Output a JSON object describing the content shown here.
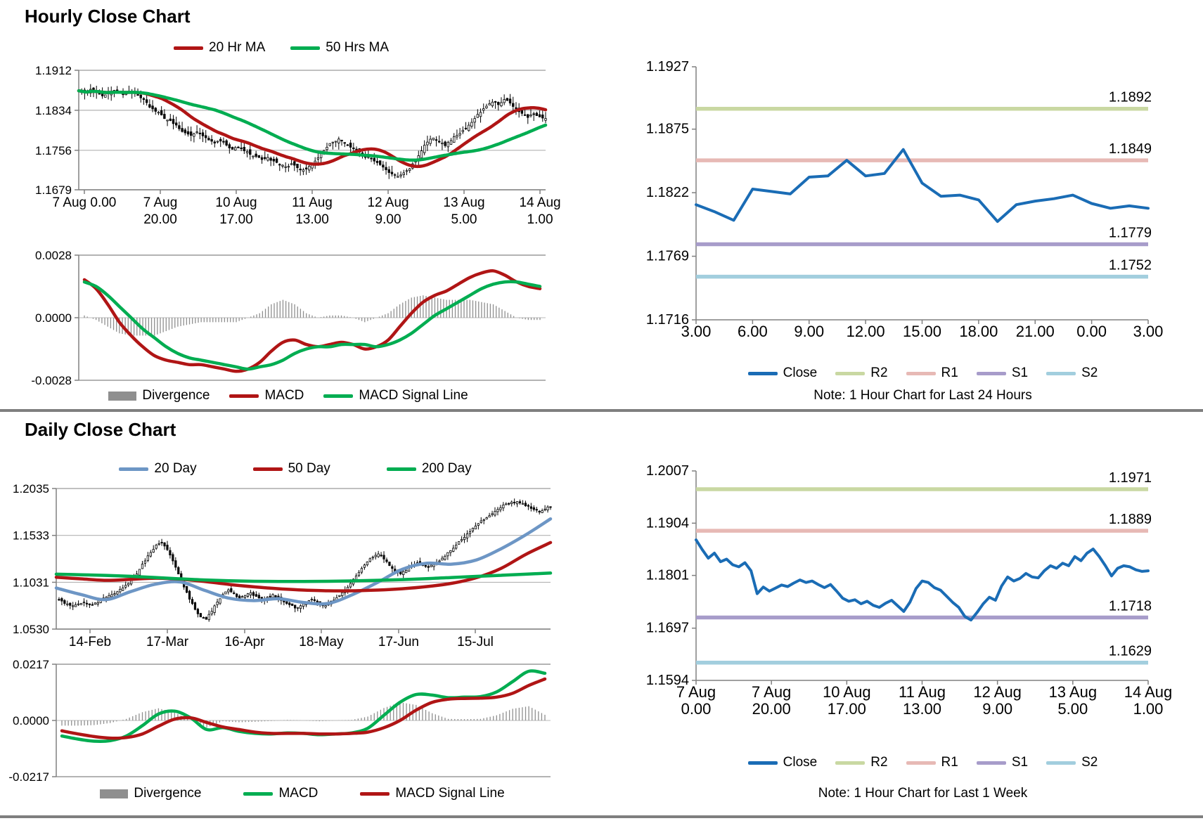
{
  "titles": {
    "hourly": "Hourly Close Chart",
    "daily": "Daily Close Chart"
  },
  "colors": {
    "dark_red": "#b01515",
    "green": "#00ad51",
    "ma20_blue": "#6d96c5",
    "close_blue": "#1a6cb5",
    "r2": "#c9d8a2",
    "r1": "#e7b9b5",
    "s1": "#a79cca",
    "s2": "#a2cede",
    "divergence_gray": "#8f8f8f",
    "grid": "#b3b3b3",
    "axis": "#808080"
  },
  "chart_data": [
    {
      "id": "hourly_candlestick",
      "type": "candlestick",
      "y_ticks": {
        "labels": [
          "1.1912",
          "1.1834",
          "1.1756",
          "1.1679"
        ],
        "values": [
          1.1912,
          1.1834,
          1.1756,
          1.1679
        ]
      },
      "x_ticks": [
        [
          "7 Aug 0.00"
        ],
        [
          "7 Aug",
          "20.00"
        ],
        [
          "10 Aug",
          "17.00"
        ],
        [
          "11 Aug",
          "13.00"
        ],
        [
          "12 Aug",
          "9.00"
        ],
        [
          "13 Aug",
          "5.00"
        ],
        [
          "14 Aug",
          "1.00"
        ]
      ],
      "close": [
        1.1872,
        1.1868,
        1.1875,
        1.187,
        1.1862,
        1.1868,
        1.1873,
        1.187,
        1.1866,
        1.1871,
        1.1864,
        1.1855,
        1.184,
        1.1832,
        1.1825,
        1.1815,
        1.1808,
        1.1798,
        1.179,
        1.1785,
        1.1792,
        1.1784,
        1.1776,
        1.177,
        1.1774,
        1.1766,
        1.1758,
        1.1762,
        1.1755,
        1.1748,
        1.1744,
        1.1738,
        1.1742,
        1.1735,
        1.1728,
        1.1724,
        1.173,
        1.1722,
        1.1718,
        1.1725,
        1.1735,
        1.175,
        1.1762,
        1.1772,
        1.1778,
        1.177,
        1.1762,
        1.1755,
        1.1748,
        1.1742,
        1.1735,
        1.1728,
        1.1718,
        1.171,
        1.1705,
        1.1712,
        1.172,
        1.1735,
        1.1755,
        1.1772,
        1.178,
        1.1772,
        1.1765,
        1.1775,
        1.1785,
        1.1795,
        1.1805,
        1.1818,
        1.183,
        1.1842,
        1.185,
        1.1845,
        1.1855,
        1.1848,
        1.1838,
        1.1828,
        1.182,
        1.1826,
        1.1821,
        1.1818
      ],
      "moving_averages": [
        {
          "name": "20 Hr MA",
          "color": "#b01515",
          "window": 19
        },
        {
          "name": "50 Hrs MA",
          "color": "#00ad51",
          "window": 47
        }
      ]
    },
    {
      "id": "hourly_macd",
      "type": "macd",
      "y_ticks": {
        "labels": [
          "0.0028",
          "0.0000",
          "-0.0028"
        ],
        "values": [
          0.0028,
          0.0,
          -0.0028
        ]
      },
      "macd": [
        0.0017,
        0.0013,
        0.0006,
        -0.0002,
        -0.0008,
        -0.0013,
        -0.0017,
        -0.0019,
        -0.002,
        -0.0021,
        -0.0021,
        -0.0022,
        -0.0023,
        -0.0024,
        -0.0023,
        -0.002,
        -0.0015,
        -0.0011,
        -0.001,
        -0.0012,
        -0.0013,
        -0.0012,
        -0.0011,
        -0.0012,
        -0.0014,
        -0.0013,
        -0.001,
        -0.0004,
        0.0002,
        0.0007,
        0.001,
        0.0012,
        0.0015,
        0.0018,
        0.002,
        0.0021,
        0.0019,
        0.0016,
        0.0014,
        0.0013
      ],
      "signal": [
        0.0016,
        0.0014,
        0.001,
        0.0005,
        0.0,
        -0.0005,
        -0.0009,
        -0.0013,
        -0.0016,
        -0.0018,
        -0.0019,
        -0.002,
        -0.0021,
        -0.0022,
        -0.0023,
        -0.0022,
        -0.0021,
        -0.0019,
        -0.0016,
        -0.0014,
        -0.0013,
        -0.0013,
        -0.0012,
        -0.0012,
        -0.0012,
        -0.0013,
        -0.0012,
        -0.001,
        -0.0007,
        -0.0003,
        0.0001,
        0.0004,
        0.0007,
        0.001,
        0.0013,
        0.0015,
        0.0016,
        0.0016,
        0.0015,
        0.0014
      ],
      "legend": [
        {
          "label": "Divergence",
          "color": "#8f8f8f",
          "swatch": "box"
        },
        {
          "label": "MACD",
          "color": "#b01515",
          "swatch": "line"
        },
        {
          "label": "MACD Signal Line",
          "color": "#00ad51",
          "swatch": "line"
        }
      ]
    },
    {
      "id": "daily_candlestick",
      "type": "candlestick",
      "y_ticks": {
        "labels": [
          "1.2035",
          "1.1533",
          "1.1031",
          "1.0530"
        ],
        "values": [
          1.2035,
          1.1533,
          1.1031,
          1.053
        ]
      },
      "x_ticks": [
        [
          "14-Feb"
        ],
        [
          "17-Mar"
        ],
        [
          "16-Apr"
        ],
        [
          "18-May"
        ],
        [
          "17-Jun"
        ],
        [
          "15-Jul"
        ]
      ],
      "close": [
        1.086,
        1.083,
        1.08,
        1.078,
        1.08,
        1.082,
        1.079,
        1.081,
        1.084,
        1.087,
        1.09,
        1.093,
        1.097,
        1.102,
        1.109,
        1.117,
        1.126,
        1.135,
        1.143,
        1.146,
        1.138,
        1.126,
        1.112,
        1.098,
        1.085,
        1.074,
        1.066,
        1.0635,
        1.072,
        1.082,
        1.09,
        1.095,
        1.091,
        1.086,
        1.089,
        1.092,
        1.088,
        1.084,
        1.087,
        1.09,
        1.086,
        1.082,
        1.079,
        1.0755,
        1.078,
        1.082,
        1.085,
        1.081,
        1.078,
        1.08,
        1.084,
        1.089,
        1.095,
        1.102,
        1.11,
        1.118,
        1.125,
        1.13,
        1.1335,
        1.128,
        1.121,
        1.115,
        1.112,
        1.116,
        1.121,
        1.124,
        1.122,
        1.119,
        1.122,
        1.126,
        1.131,
        1.137,
        1.143,
        1.149,
        1.155,
        1.161,
        1.166,
        1.17,
        1.1745,
        1.179,
        1.183,
        1.187,
        1.189,
        1.1895,
        1.1875,
        1.1845,
        1.181,
        1.179,
        1.1815,
        1.184
      ],
      "ma_series": [
        {
          "name": "20 Day",
          "color": "#6d96c5",
          "values": [
            1.097,
            1.09,
            1.0845,
            1.093,
            1.101,
            1.1035,
            1.0945,
            1.086,
            1.0835,
            1.0855,
            1.0815,
            1.0805,
            1.09,
            1.103,
            1.117,
            1.1235,
            1.1225,
            1.127,
            1.139,
            1.154,
            1.171
          ]
        },
        {
          "name": "50 Day",
          "color": "#b01515",
          "values": [
            1.1085,
            1.1068,
            1.1052,
            1.1062,
            1.1075,
            1.1065,
            1.104,
            1.1008,
            1.0982,
            1.0962,
            1.0948,
            1.094,
            1.094,
            1.0948,
            1.0962,
            1.0985,
            1.102,
            1.108,
            1.118,
            1.133,
            1.1456
          ]
        },
        {
          "name": "200 Day",
          "color": "#00ad51",
          "values": [
            1.1118,
            1.1112,
            1.1105,
            1.1095,
            1.1082,
            1.1068,
            1.1056,
            1.1048,
            1.1042,
            1.104,
            1.104,
            1.1042,
            1.1046,
            1.1052,
            1.106,
            1.107,
            1.1082,
            1.1094,
            1.1106,
            1.1118,
            1.113
          ]
        }
      ]
    },
    {
      "id": "daily_macd",
      "type": "macd",
      "y_ticks": {
        "labels": [
          "0.0217",
          "0.0000",
          "-0.0217"
        ],
        "values": [
          0.0217,
          0.0,
          -0.0217
        ]
      },
      "macd": [
        -0.006,
        -0.0072,
        -0.008,
        -0.0078,
        -0.006,
        -0.002,
        0.0025,
        0.0036,
        0.001,
        -0.0035,
        -0.0028,
        -0.0042,
        -0.005,
        -0.0052,
        -0.0048,
        -0.005,
        -0.0055,
        -0.0052,
        -0.0048,
        -0.003,
        0.002,
        0.007,
        0.01,
        0.0098,
        0.0088,
        0.009,
        0.0092,
        0.011,
        0.015,
        0.019,
        0.0182
      ],
      "signal": [
        -0.004,
        -0.0052,
        -0.0062,
        -0.0068,
        -0.0066,
        -0.0052,
        -0.0022,
        0.0005,
        0.001,
        -0.0008,
        -0.0025,
        -0.0035,
        -0.0045,
        -0.005,
        -0.005,
        -0.005,
        -0.0052,
        -0.0052,
        -0.005,
        -0.0045,
        -0.0028,
        0.0,
        0.004,
        0.007,
        0.0082,
        0.0085,
        0.0086,
        0.009,
        0.0105,
        0.0135,
        0.016
      ],
      "legend": [
        {
          "label": "Divergence",
          "color": "#8f8f8f",
          "swatch": "box"
        },
        {
          "label": "MACD",
          "color": "#00ad51",
          "swatch": "line"
        },
        {
          "label": "MACD Signal Line",
          "color": "#b01515",
          "swatch": "line"
        }
      ]
    },
    {
      "id": "intraday_close_line",
      "type": "line",
      "note": "Note: 1 Hour Chart for Last 24 Hours",
      "y_ticks": {
        "labels": [
          "1.1927",
          "1.1875",
          "1.1822",
          "1.1769",
          "1.1716"
        ],
        "values": [
          1.1927,
          1.1875,
          1.1822,
          1.1769,
          1.1716
        ]
      },
      "x_ticks": [
        [
          "3.00"
        ],
        [
          "6.00"
        ],
        [
          "9.00"
        ],
        [
          "12.00"
        ],
        [
          "15.00"
        ],
        [
          "18.00"
        ],
        [
          "21.00"
        ],
        [
          "0.00"
        ],
        [
          "3.00"
        ]
      ],
      "close": [
        1.1812,
        1.1806,
        1.1799,
        1.1825,
        1.1823,
        1.1821,
        1.1835,
        1.1836,
        1.1849,
        1.1836,
        1.1838,
        1.1858,
        1.183,
        1.1819,
        1.182,
        1.1816,
        1.1798,
        1.1812,
        1.1815,
        1.1817,
        1.182,
        1.1813,
        1.1809,
        1.1811,
        1.1809
      ],
      "levels": [
        {
          "name": "R2",
          "label": "1.1892",
          "value": 1.1892,
          "color": "#c9d8a2"
        },
        {
          "name": "R1",
          "label": "1.1849",
          "value": 1.1849,
          "color": "#e7b9b5"
        },
        {
          "name": "S1",
          "label": "1.1779",
          "value": 1.1779,
          "color": "#a79cca"
        },
        {
          "name": "S2",
          "label": "1.1752",
          "value": 1.1752,
          "color": "#a2cede"
        }
      ],
      "legend": [
        {
          "label": "Close",
          "color": "#1a6cb5"
        },
        {
          "label": "R2",
          "color": "#c9d8a2"
        },
        {
          "label": "R1",
          "color": "#e7b9b5"
        },
        {
          "label": "S1",
          "color": "#a79cca"
        },
        {
          "label": "S2",
          "color": "#a2cede"
        }
      ]
    },
    {
      "id": "week_close_line",
      "type": "line",
      "note": "Note: 1 Hour Chart for Last 1 Week",
      "y_ticks": {
        "labels": [
          "1.2007",
          "1.1904",
          "1.1801",
          "1.1697",
          "1.1594"
        ],
        "values": [
          1.2007,
          1.1904,
          1.1801,
          1.1697,
          1.1594
        ]
      },
      "x_ticks": [
        [
          "7 Aug",
          "0.00"
        ],
        [
          "7 Aug",
          "20.00"
        ],
        [
          "10 Aug",
          "17.00"
        ],
        [
          "11 Aug",
          "13.00"
        ],
        [
          "12 Aug",
          "9.00"
        ],
        [
          "13 Aug",
          "5.00"
        ],
        [
          "14 Aug",
          "1.00"
        ]
      ],
      "close": [
        1.1871,
        1.1852,
        1.1835,
        1.1845,
        1.1828,
        1.1833,
        1.1822,
        1.1818,
        1.1826,
        1.181,
        1.1765,
        1.1778,
        1.177,
        1.1776,
        1.1782,
        1.1779,
        1.1786,
        1.1792,
        1.1787,
        1.179,
        1.1783,
        1.1777,
        1.1783,
        1.177,
        1.1756,
        1.175,
        1.1753,
        1.1745,
        1.175,
        1.1742,
        1.1738,
        1.1746,
        1.1752,
        1.1741,
        1.173,
        1.1748,
        1.1775,
        1.179,
        1.1787,
        1.1777,
        1.1772,
        1.176,
        1.1748,
        1.1738,
        1.172,
        1.1713,
        1.1728,
        1.1745,
        1.1758,
        1.1752,
        1.178,
        1.1798,
        1.179,
        1.1795,
        1.1805,
        1.1798,
        1.1796,
        1.181,
        1.182,
        1.1815,
        1.1825,
        1.182,
        1.1838,
        1.183,
        1.1845,
        1.1853,
        1.1838,
        1.182,
        1.18,
        1.1815,
        1.182,
        1.1818,
        1.1812,
        1.1809,
        1.181
      ],
      "levels": [
        {
          "name": "R2",
          "label": "1.1971",
          "value": 1.1971,
          "color": "#c9d8a2"
        },
        {
          "name": "R1",
          "label": "1.1889",
          "value": 1.1889,
          "color": "#e7b9b5"
        },
        {
          "name": "S1",
          "label": "1.1718",
          "value": 1.1718,
          "color": "#a79cca"
        },
        {
          "name": "S2",
          "label": "1.1629",
          "value": 1.1629,
          "color": "#a2cede"
        }
      ],
      "legend": [
        {
          "label": "Close",
          "color": "#1a6cb5"
        },
        {
          "label": "R2",
          "color": "#c9d8a2"
        },
        {
          "label": "R1",
          "color": "#e7b9b5"
        },
        {
          "label": "S1",
          "color": "#a79cca"
        },
        {
          "label": "S2",
          "color": "#a2cede"
        }
      ]
    }
  ]
}
